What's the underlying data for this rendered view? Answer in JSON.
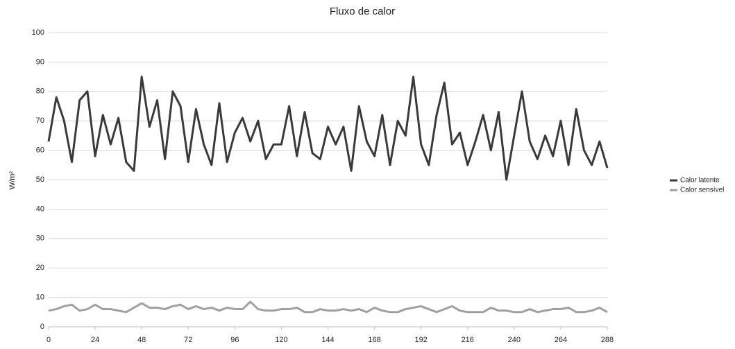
{
  "chart_data": {
    "type": "line",
    "title": "Fluxo de calor",
    "y_label": "W/m²",
    "x": [
      0,
      4,
      8,
      12,
      16,
      20,
      24,
      28,
      32,
      36,
      40,
      44,
      48,
      52,
      56,
      60,
      64,
      68,
      72,
      76,
      80,
      84,
      88,
      92,
      96,
      100,
      104,
      108,
      112,
      116,
      120,
      124,
      128,
      132,
      136,
      140,
      144,
      148,
      152,
      156,
      160,
      164,
      168,
      172,
      176,
      180,
      184,
      188,
      192,
      196,
      200,
      204,
      208,
      212,
      216,
      220,
      224,
      228,
      232,
      236,
      240,
      244,
      248,
      252,
      256,
      260,
      264,
      268,
      272,
      276,
      280,
      284,
      288
    ],
    "series": [
      {
        "name": "Calor latente",
        "color": "#3a3a3a",
        "values": [
          63,
          78,
          70,
          56,
          77,
          80,
          58,
          72,
          62,
          71,
          56,
          53,
          85,
          68,
          77,
          57,
          80,
          75,
          56,
          74,
          62,
          55,
          76,
          56,
          66,
          71,
          63,
          70,
          57,
          62,
          62,
          75,
          58,
          73,
          59,
          57,
          68,
          62,
          68,
          53,
          75,
          63,
          58,
          72,
          55,
          70,
          65,
          85,
          62,
          55,
          72,
          83,
          62,
          66,
          55,
          63,
          72,
          60,
          73,
          50,
          65,
          80,
          63,
          57,
          65,
          58,
          70,
          55,
          74,
          60,
          55,
          63,
          54
        ]
      },
      {
        "name": "Calor sensível",
        "color": "#a0a0a0",
        "values": [
          5.5,
          6,
          7,
          7.5,
          5.5,
          6,
          7.5,
          6,
          6,
          5.5,
          5,
          6.5,
          8,
          6.5,
          6.5,
          6,
          7,
          7.5,
          6,
          7,
          6,
          6.5,
          5.5,
          6.5,
          6,
          6,
          8.5,
          6,
          5.5,
          5.5,
          6,
          6,
          6.5,
          5,
          5,
          6,
          5.5,
          5.5,
          6,
          5.5,
          6,
          5,
          6.5,
          5.5,
          5,
          5,
          6,
          6.5,
          7,
          6,
          5,
          6,
          7,
          5.5,
          5,
          5,
          5,
          6.5,
          5.5,
          5.5,
          5,
          5,
          6,
          5,
          5.5,
          6,
          6,
          6.5,
          5,
          5,
          5.5,
          6.5,
          5
        ]
      }
    ],
    "xlim": [
      0,
      288
    ],
    "xticks": [
      0,
      24,
      48,
      72,
      96,
      120,
      144,
      168,
      192,
      216,
      240,
      264,
      288
    ],
    "ylim": [
      0,
      100
    ],
    "yticks": [
      0,
      10,
      20,
      30,
      40,
      50,
      60,
      70,
      80,
      90,
      100
    ],
    "grid": true,
    "legend": "right"
  }
}
